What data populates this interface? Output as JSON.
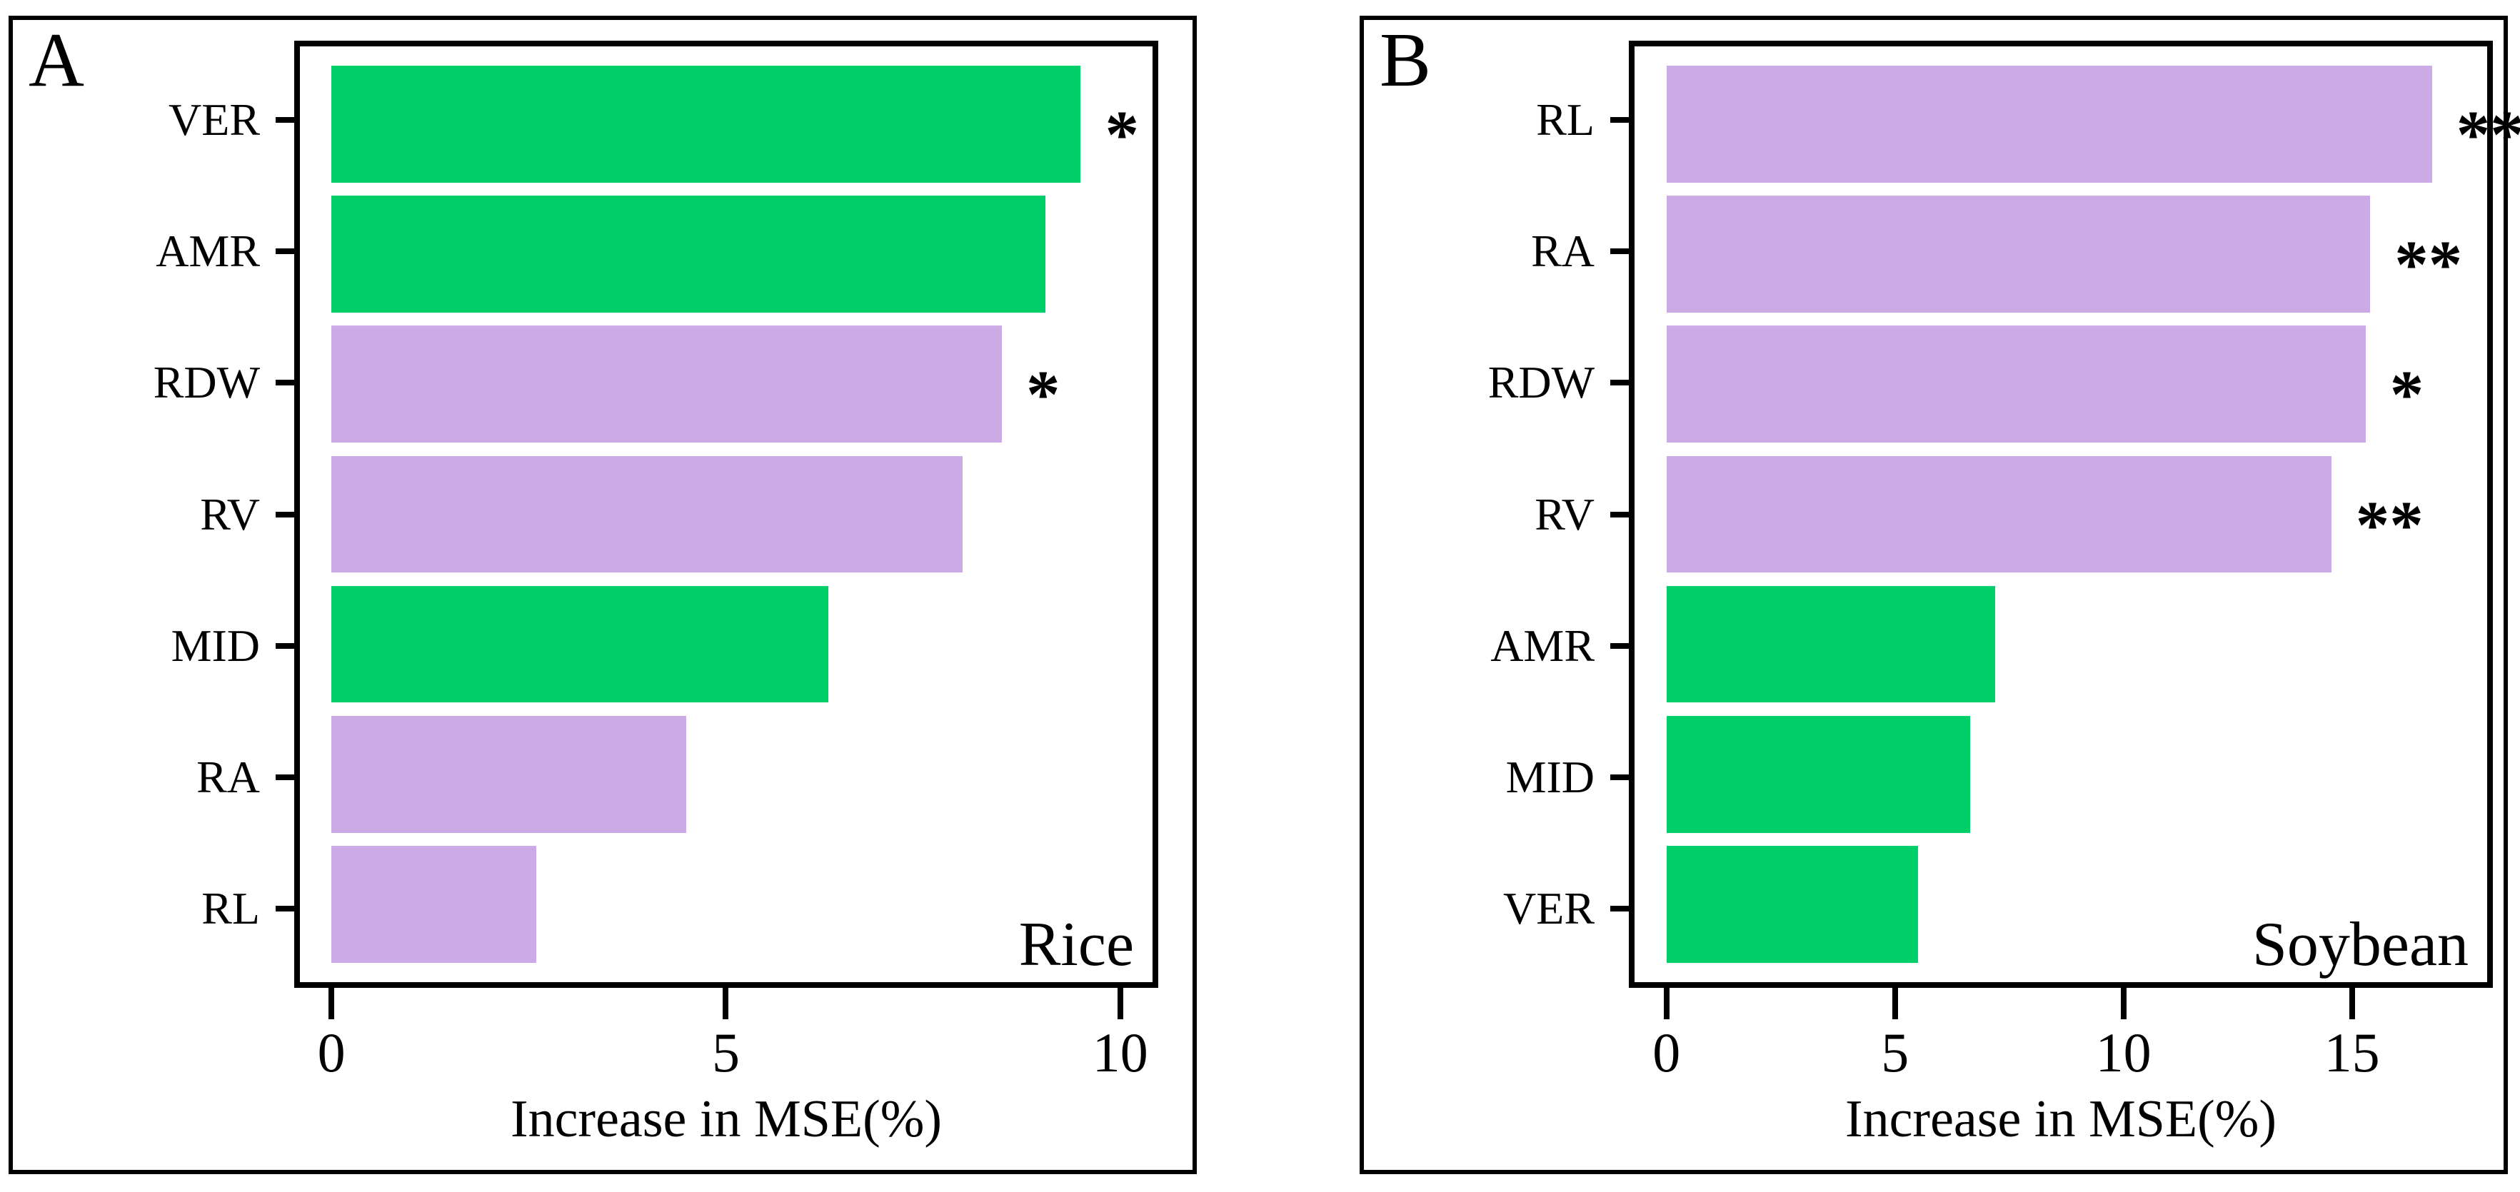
{
  "colors": {
    "green": "#00CE68",
    "purple": "#CBAAE5",
    "axis": "#000000"
  },
  "chart_data": [
    {
      "type": "bar",
      "orientation": "horizontal",
      "panel_label": "A",
      "corner_label": "Rice",
      "categories": [
        "VER",
        "AMR",
        "RDW",
        "RV",
        "MID",
        "RA",
        "RL"
      ],
      "values": [
        9.5,
        9.05,
        8.5,
        8.0,
        6.3,
        4.5,
        2.6
      ],
      "bar_colors": [
        "green",
        "green",
        "purple",
        "purple",
        "green",
        "purple",
        "purple"
      ],
      "significance": [
        "*",
        "",
        "*",
        "",
        "",
        "",
        ""
      ],
      "xlabel": "Increase in MSE(%)",
      "xticks": [
        0,
        5,
        10
      ],
      "xlim": [
        0,
        10.4
      ],
      "grid": false,
      "legend": "none"
    },
    {
      "type": "bar",
      "orientation": "horizontal",
      "panel_label": "B",
      "corner_label": "Soybean",
      "categories": [
        "RL",
        "RA",
        "RDW",
        "RV",
        "AMR",
        "MID",
        "VER"
      ],
      "values": [
        16.75,
        15.4,
        15.3,
        14.55,
        7.2,
        6.65,
        5.5
      ],
      "bar_colors": [
        "purple",
        "purple",
        "purple",
        "purple",
        "green",
        "green",
        "green"
      ],
      "significance": [
        "**",
        "**",
        "*",
        "**",
        "",
        "",
        ""
      ],
      "xlabel": "Increase in MSE(%)",
      "xticks": [
        0,
        5,
        10,
        15
      ],
      "xlim": [
        0,
        18
      ],
      "grid": false,
      "legend": "none"
    }
  ]
}
